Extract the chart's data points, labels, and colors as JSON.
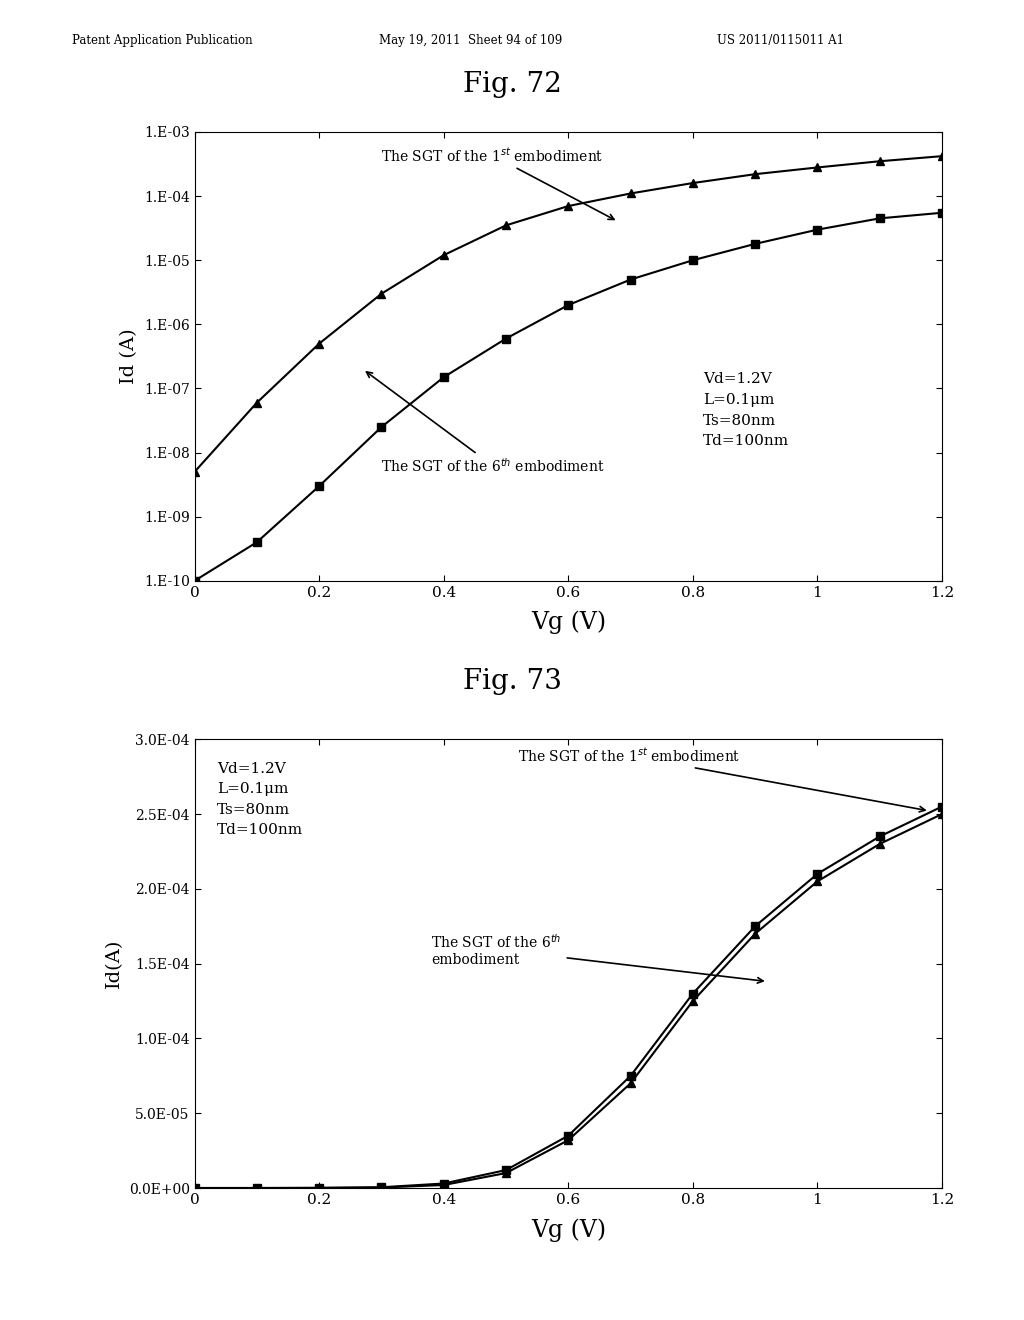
{
  "header_left": "Patent Application Publication",
  "header_mid": "May 19, 2011  Sheet 94 of 109",
  "header_right": "US 2011/0115011 A1",
  "fig72_title": "Fig. 72",
  "fig73_title": "Fig. 73",
  "fig72_ylabel": "Id (A)",
  "fig73_ylabel": "Id(A)",
  "xlabel": "Vg (V)",
  "params_text72": "Vd=1.2V\nL=0.1μm\nTs=80nm\nTd=100nm",
  "params_text73": "Vd=1.2V\nL=0.1μm\nTs=80nm\nTd=100nm",
  "vg_values": [
    0.0,
    0.1,
    0.2,
    0.3,
    0.4,
    0.5,
    0.6,
    0.7,
    0.8,
    0.9,
    1.0,
    1.1,
    1.2
  ],
  "fig72_sgt1_id": [
    1e-10,
    4e-10,
    3e-09,
    2.5e-08,
    1.5e-07,
    6e-07,
    2e-06,
    5e-06,
    1e-05,
    1.8e-05,
    3e-05,
    4.5e-05,
    5.5e-05
  ],
  "fig72_sgt6_id": [
    5e-09,
    6e-08,
    5e-07,
    3e-06,
    1.2e-05,
    3.5e-05,
    7e-05,
    0.00011,
    0.00016,
    0.00022,
    0.00028,
    0.00035,
    0.00042
  ],
  "fig73_sgt1_id": [
    0.0,
    0.0,
    1e-07,
    5e-07,
    3e-06,
    1.2e-05,
    3.5e-05,
    7.5e-05,
    0.00013,
    0.000175,
    0.00021,
    0.000235,
    0.000255
  ],
  "fig73_sgt6_id": [
    0.0,
    0.0,
    5e-08,
    3e-07,
    2e-06,
    1e-05,
    3.2e-05,
    7e-05,
    0.000125,
    0.00017,
    0.000205,
    0.00023,
    0.00025
  ],
  "fig72_yticks": [
    1e-10,
    1e-09,
    1e-08,
    1e-07,
    1e-06,
    1e-05,
    0.0001,
    0.001
  ],
  "fig72_yticklabels": [
    "1.E-10",
    "1.E-09",
    "1.E-08",
    "1.E-07",
    "1.E-06",
    "1.E-05",
    "1.E-04",
    "1.E-03"
  ],
  "fig73_yticks": [
    0.0,
    5e-05,
    0.0001,
    0.00015,
    0.0002,
    0.00025,
    0.0003
  ],
  "fig73_yticklabels": [
    "0.0E+00",
    "5.0E-05",
    "1.0E-04",
    "1.5E-04",
    "2.0E-04",
    "2.5E-04",
    "3.0E-04"
  ],
  "xticks": [
    0,
    0.2,
    0.4,
    0.6,
    0.8,
    1.0,
    1.2
  ],
  "xticklabels": [
    "0",
    "0.2",
    "0.4",
    "0.6",
    "0.8",
    "1",
    "1.2"
  ],
  "bg_color": "#ffffff",
  "line_color": "#000000",
  "marker_square": "s",
  "marker_triangle": "^",
  "marker_size": 6,
  "line_width": 1.5
}
